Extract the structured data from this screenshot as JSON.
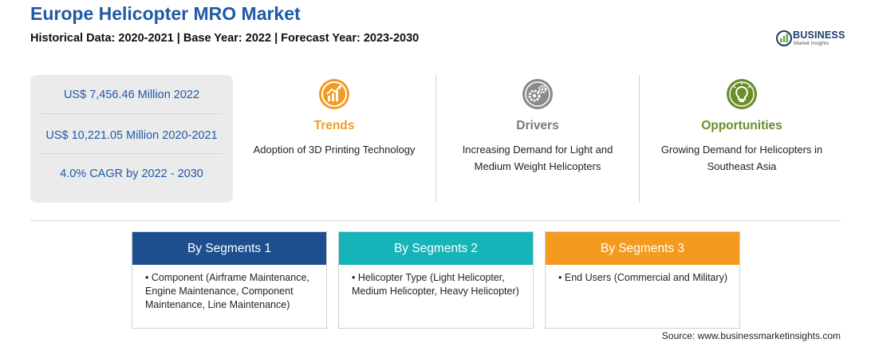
{
  "header": {
    "title": "Europe Helicopter MRO Market",
    "subtitle": "Historical Data: 2020-2021 | Base Year: 2022 | Forecast Year: 2023-2030"
  },
  "logo": {
    "brand": "BUSINESS",
    "tagline": "Market Insights"
  },
  "stats": [
    "US$ 7,456.46 Million 2022",
    "US$ 10,221.05 Million 2020-2021",
    "4.0% CAGR by 2022 - 2030"
  ],
  "columns": {
    "trends": {
      "title": "Trends",
      "desc": "Adoption of 3D Printing Technology",
      "color": "#f39a1f",
      "icon": "trend-chart-icon"
    },
    "drivers": {
      "title": "Drivers",
      "desc": "Increasing Demand for Light and Medium Weight Helicopters",
      "color": "#7a7a7a",
      "icon": "gears-icon"
    },
    "opportunities": {
      "title": "Opportunities",
      "desc": "Growing Demand for Helicopters in Southeast Asia",
      "color": "#6a8e2a",
      "icon": "lightbulb-icon"
    }
  },
  "segments": [
    {
      "title": "By Segments 1",
      "item": "Component (Airframe Maintenance, Engine Maintenance, Component Maintenance, Line Maintenance)",
      "color": "#1d4f8f"
    },
    {
      "title": "By Segments 2",
      "item": "Helicopter Type (Light Helicopter, Medium Helicopter, Heavy Helicopter)",
      "color": "#15b4b8"
    },
    {
      "title": "By Segments 3",
      "item": "End Users (Commercial and Military)",
      "color": "#f39a1f"
    }
  ],
  "source": "Source: www.businessmarketinsights.com"
}
